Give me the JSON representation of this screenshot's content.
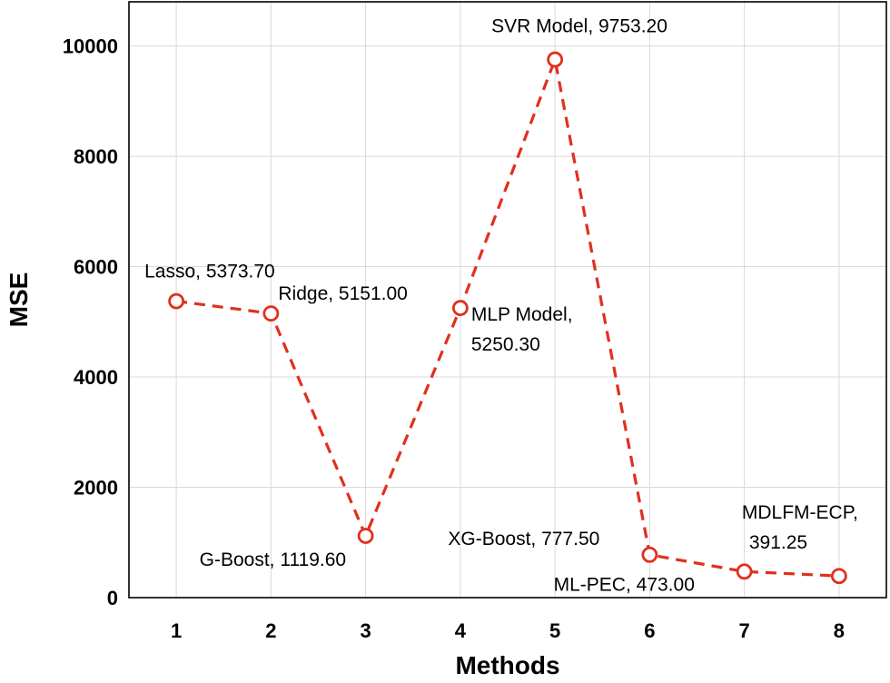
{
  "chart_data": {
    "type": "line",
    "title": "",
    "xlabel": "Methods",
    "ylabel": "MSE",
    "xlim": [
      0.5,
      8.5
    ],
    "ylim": [
      0,
      10800
    ],
    "xticks": [
      "1",
      "2",
      "3",
      "4",
      "5",
      "6",
      "7",
      "8"
    ],
    "yticks": [
      "0",
      "2000",
      "4000",
      "6000",
      "8000",
      "10000"
    ],
    "grid": true,
    "line_color": "#e0301e",
    "line_style": "dashed",
    "marker": "circle",
    "series": [
      {
        "name": "MSE",
        "x": [
          1,
          2,
          3,
          4,
          5,
          6,
          7,
          8
        ],
        "values": [
          5373.7,
          5151.0,
          1119.6,
          5250.3,
          9753.2,
          777.5,
          473.0,
          391.25
        ]
      }
    ],
    "annotations": [
      {
        "x": 1,
        "lines": [
          "Lasso, 5373.70"
        ]
      },
      {
        "x": 2,
        "lines": [
          "Ridge, 5151.00"
        ]
      },
      {
        "x": 3,
        "lines": [
          "G-Boost, 1119.60"
        ]
      },
      {
        "x": 4,
        "lines": [
          "MLP Model,",
          "5250.30"
        ]
      },
      {
        "x": 5,
        "lines": [
          "SVR Model, 9753.20"
        ]
      },
      {
        "x": 6,
        "lines": [
          "XG-Boost, 777.50"
        ]
      },
      {
        "x": 7,
        "lines": [
          "ML-PEC, 473.00"
        ]
      },
      {
        "x": 8,
        "lines": [
          "MDLFM-ECP,",
          "391.25"
        ]
      }
    ]
  }
}
